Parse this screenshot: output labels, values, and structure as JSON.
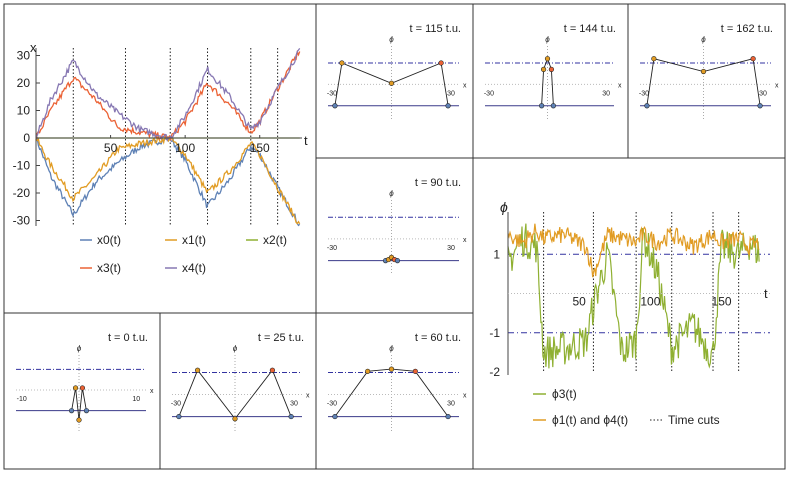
{
  "colors": {
    "x0": "#5e81b5",
    "x1": "#e19c24",
    "x2": "#8fb032",
    "x3": "#eb6235",
    "x4": "#8778b3",
    "phi3": "#8fb032",
    "phi14": "#e19c24",
    "dotdash": "#3232a0"
  },
  "chart_data": [
    {
      "id": "trajectories",
      "type": "line",
      "xlabel": "t",
      "ylabel": "x",
      "xlim": [
        0,
        177
      ],
      "ylim": [
        -32,
        32
      ],
      "xticks": [
        "50",
        "100",
        "150"
      ],
      "yticks": [
        "-30",
        "-20",
        "-10",
        "0",
        "10",
        "20",
        "30"
      ],
      "time_cuts": [
        0,
        25,
        60,
        90,
        115,
        144,
        162
      ],
      "legend": [
        "x0(t)",
        "x1(t)",
        "x2(t)",
        "x3(t)",
        "x4(t)"
      ],
      "series": [
        {
          "name": "x0(t)",
          "points": [
            [
              0,
              0
            ],
            [
              10,
              -14
            ],
            [
              25,
              -28
            ],
            [
              40,
              -16
            ],
            [
              55,
              -9
            ],
            [
              70,
              -3
            ],
            [
              90,
              0
            ],
            [
              100,
              -8
            ],
            [
              115,
              -25
            ],
            [
              130,
              -15
            ],
            [
              144,
              -3
            ],
            [
              150,
              -6
            ],
            [
              162,
              -18
            ],
            [
              177,
              -32
            ]
          ]
        },
        {
          "name": "x1(t)",
          "points": [
            [
              0,
              0
            ],
            [
              10,
              -10
            ],
            [
              25,
              -22
            ],
            [
              40,
              -14
            ],
            [
              55,
              -4
            ],
            [
              70,
              -2
            ],
            [
              90,
              0
            ],
            [
              100,
              -6
            ],
            [
              115,
              -20
            ],
            [
              130,
              -12
            ],
            [
              144,
              -2
            ],
            [
              150,
              -6
            ],
            [
              162,
              -18
            ],
            [
              177,
              -32
            ]
          ]
        },
        {
          "name": "x2(t)",
          "points": [
            [
              0,
              0
            ],
            [
              177,
              0
            ]
          ]
        },
        {
          "name": "x3(t)",
          "points": [
            [
              0,
              0
            ],
            [
              10,
              10
            ],
            [
              25,
              22
            ],
            [
              40,
              14
            ],
            [
              55,
              4
            ],
            [
              70,
              2
            ],
            [
              90,
              0
            ],
            [
              100,
              6
            ],
            [
              115,
              20
            ],
            [
              130,
              12
            ],
            [
              144,
              2
            ],
            [
              150,
              6
            ],
            [
              162,
              18
            ],
            [
              177,
              32
            ]
          ]
        },
        {
          "name": "x4(t)",
          "points": [
            [
              0,
              0
            ],
            [
              10,
              14
            ],
            [
              25,
              28
            ],
            [
              40,
              16
            ],
            [
              55,
              9
            ],
            [
              70,
              3
            ],
            [
              90,
              0
            ],
            [
              100,
              8
            ],
            [
              115,
              25
            ],
            [
              130,
              15
            ],
            [
              144,
              3
            ],
            [
              150,
              6
            ],
            [
              162,
              18
            ],
            [
              177,
              32
            ]
          ]
        }
      ]
    },
    {
      "id": "phi",
      "type": "line",
      "xlabel": "t",
      "ylabel": "ϕ",
      "xlim": [
        0,
        177
      ],
      "ylim": [
        -2,
        2
      ],
      "xticks": [
        "50",
        "100",
        "150"
      ],
      "yticks": [
        "-2",
        "-1",
        "1"
      ],
      "reference_lines": [
        1,
        -1
      ],
      "time_cuts": [
        0,
        25,
        60,
        90,
        115,
        144,
        162
      ],
      "legend": [
        "ϕ3(t)",
        "ϕ1(t) and ϕ4(t)",
        "Time cuts"
      ],
      "series": [
        {
          "name": "ϕ3(t)",
          "points": [
            [
              0,
              0.8
            ],
            [
              10,
              1.4
            ],
            [
              20,
              1.2
            ],
            [
              25,
              -1.5
            ],
            [
              40,
              -1.4
            ],
            [
              55,
              -1.2
            ],
            [
              60,
              -0.3
            ],
            [
              70,
              1.0
            ],
            [
              80,
              -1.5
            ],
            [
              90,
              -1.2
            ],
            [
              95,
              1.5
            ],
            [
              105,
              0.5
            ],
            [
              115,
              -1.4
            ],
            [
              130,
              -0.8
            ],
            [
              144,
              -1.6
            ],
            [
              150,
              1.2
            ],
            [
              162,
              1.0
            ],
            [
              170,
              1.3
            ],
            [
              177,
              1.0
            ]
          ]
        },
        {
          "name": "ϕ1(t) and ϕ4(t)",
          "points": [
            [
              0,
              1.5
            ],
            [
              10,
              1.3
            ],
            [
              20,
              1.6
            ],
            [
              25,
              1.4
            ],
            [
              40,
              1.5
            ],
            [
              55,
              1.2
            ],
            [
              60,
              0.5
            ],
            [
              70,
              1.5
            ],
            [
              80,
              1.4
            ],
            [
              90,
              1.3
            ],
            [
              95,
              1.5
            ],
            [
              105,
              1.3
            ],
            [
              115,
              1.5
            ],
            [
              130,
              1.2
            ],
            [
              144,
              1.5
            ],
            [
              150,
              1.3
            ],
            [
              162,
              1.4
            ],
            [
              170,
              1.2
            ],
            [
              177,
              1.3
            ]
          ]
        }
      ]
    },
    {
      "id": "snapshot-t115",
      "type": "line",
      "title": "t = 115 t.u.",
      "ylabel": "ϕ",
      "xlabel": "x",
      "xticks": [
        "-30",
        "30"
      ],
      "xlim": [
        -32,
        32
      ],
      "ylim": [
        -1.2,
        1.7
      ],
      "points": [
        {
          "x": -28.5,
          "y": -1.0
        },
        {
          "x": -25,
          "y": 1.0
        },
        {
          "x": 0,
          "y": 0.05
        },
        {
          "x": 25,
          "y": 1.0
        },
        {
          "x": 28.5,
          "y": -1.0
        }
      ]
    },
    {
      "id": "snapshot-t144",
      "type": "line",
      "title": "t = 144 t.u.",
      "ylabel": "ϕ",
      "xlabel": "x",
      "xticks": [
        "-30",
        "30"
      ],
      "xlim": [
        -32,
        32
      ],
      "ylim": [
        -1.2,
        1.7
      ],
      "points": [
        {
          "x": -3,
          "y": -1.0
        },
        {
          "x": -2,
          "y": 0.7
        },
        {
          "x": 0,
          "y": 1.2
        },
        {
          "x": 2,
          "y": 0.7
        },
        {
          "x": 3,
          "y": -1.0
        }
      ]
    },
    {
      "id": "snapshot-t162",
      "type": "line",
      "title": "t = 162 t.u.",
      "ylabel": "ϕ",
      "xlabel": "x",
      "xticks": [
        "-30",
        "30"
      ],
      "xlim": [
        -32,
        32
      ],
      "ylim": [
        -1.2,
        1.7
      ],
      "points": [
        {
          "x": -28.5,
          "y": -1.0
        },
        {
          "x": -25,
          "y": 1.2
        },
        {
          "x": 0,
          "y": 0.6
        },
        {
          "x": 25,
          "y": 1.2
        },
        {
          "x": 28.5,
          "y": -1.0
        }
      ]
    },
    {
      "id": "snapshot-t90",
      "type": "line",
      "title": "t = 90 t.u.",
      "ylabel": "ϕ",
      "xlabel": "x",
      "xticks": [
        "-30",
        "30"
      ],
      "xlim": [
        -32,
        32
      ],
      "ylim": [
        -1.2,
        1.7
      ],
      "points": [
        {
          "x": -3,
          "y": -1.0
        },
        {
          "x": -1.5,
          "y": -0.95
        },
        {
          "x": 0,
          "y": -0.85
        },
        {
          "x": 1.5,
          "y": -0.95
        },
        {
          "x": 3,
          "y": -1.0
        }
      ]
    },
    {
      "id": "snapshot-t0",
      "type": "line",
      "title": "t = 0 t.u.",
      "ylabel": "ϕ",
      "xlabel": "x",
      "xticks": [
        "-10",
        "10"
      ],
      "xlim": [
        -11,
        11
      ],
      "ylim": [
        -1.5,
        1.6
      ],
      "points": [
        {
          "x": -1.3,
          "y": -1.0
        },
        {
          "x": -0.6,
          "y": 0.1
        },
        {
          "x": 0,
          "y": -1.45
        },
        {
          "x": 0.6,
          "y": 0.1
        },
        {
          "x": 1.3,
          "y": -1.0
        }
      ]
    },
    {
      "id": "snapshot-t25",
      "type": "line",
      "title": "t = 25 t.u.",
      "ylabel": "ϕ",
      "xlabel": "x",
      "xticks": [
        "-30",
        "30"
      ],
      "xlim": [
        -32,
        32
      ],
      "ylim": [
        -1.2,
        1.7
      ],
      "points": [
        {
          "x": -28.5,
          "y": -1.0
        },
        {
          "x": -19,
          "y": 1.1
        },
        {
          "x": 0,
          "y": -1.1
        },
        {
          "x": 19,
          "y": 1.1
        },
        {
          "x": 28.5,
          "y": -1.0
        }
      ]
    },
    {
      "id": "snapshot-t60",
      "type": "line",
      "title": "t = 60 t.u.",
      "ylabel": "ϕ",
      "xlabel": "x",
      "xticks": [
        "-30",
        "30"
      ],
      "xlim": [
        -32,
        32
      ],
      "ylim": [
        -1.2,
        1.7
      ],
      "points": [
        {
          "x": -28.5,
          "y": -1.0
        },
        {
          "x": -12,
          "y": 1.05
        },
        {
          "x": 0,
          "y": 1.15
        },
        {
          "x": 12,
          "y": 1.05
        },
        {
          "x": 28.5,
          "y": -1.0
        }
      ]
    }
  ]
}
